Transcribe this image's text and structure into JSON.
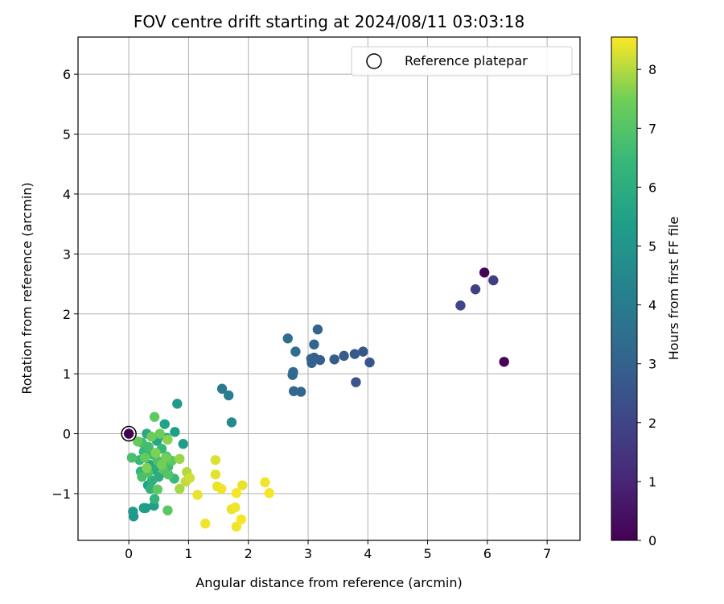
{
  "chart_data": {
    "type": "scatter",
    "title": "FOV centre drift starting at 2024/08/11 03:03:18",
    "xlabel": "Angular distance from reference (arcmin)",
    "ylabel": "Rotation from reference (arcmin)",
    "xlim": [
      -0.85,
      7.55
    ],
    "ylim": [
      -1.78,
      6.62
    ],
    "xticks": [
      0,
      1,
      2,
      3,
      4,
      5,
      6,
      7
    ],
    "yticks": [
      -1,
      0,
      1,
      2,
      3,
      4,
      5,
      6
    ],
    "grid": true,
    "colormap": "viridis",
    "colorbar": {
      "label": "Hours from first FF file",
      "range": [
        0,
        8.55
      ],
      "ticks": [
        0,
        1,
        2,
        3,
        4,
        5,
        6,
        7,
        8
      ]
    },
    "legend": {
      "position": "top-right",
      "entries": [
        "Reference platepar"
      ]
    },
    "reference_point": {
      "x": 0,
      "y": 0
    },
    "points": [
      {
        "x": 5.95,
        "y": 2.69,
        "c": 0.05
      },
      {
        "x": 6.28,
        "y": 1.2,
        "c": 0.1
      },
      {
        "x": 0.0,
        "y": 0.0,
        "c": 0.0
      },
      {
        "x": 6.1,
        "y": 2.56,
        "c": 1.8
      },
      {
        "x": 5.8,
        "y": 2.41,
        "c": 1.85
      },
      {
        "x": 5.55,
        "y": 2.14,
        "c": 2.0
      },
      {
        "x": 3.8,
        "y": 0.86,
        "c": 2.55
      },
      {
        "x": 4.03,
        "y": 1.19,
        "c": 2.6
      },
      {
        "x": 3.92,
        "y": 1.37,
        "c": 2.65
      },
      {
        "x": 3.78,
        "y": 1.33,
        "c": 2.7
      },
      {
        "x": 3.6,
        "y": 1.3,
        "c": 2.75
      },
      {
        "x": 3.44,
        "y": 1.24,
        "c": 2.8
      },
      {
        "x": 3.2,
        "y": 1.23,
        "c": 2.85
      },
      {
        "x": 3.1,
        "y": 1.27,
        "c": 2.9
      },
      {
        "x": 3.05,
        "y": 1.25,
        "c": 2.95
      },
      {
        "x": 3.06,
        "y": 1.18,
        "c": 3.0
      },
      {
        "x": 3.16,
        "y": 1.74,
        "c": 3.05
      },
      {
        "x": 3.1,
        "y": 1.49,
        "c": 3.1
      },
      {
        "x": 2.88,
        "y": 0.7,
        "c": 3.15
      },
      {
        "x": 2.76,
        "y": 0.71,
        "c": 3.2
      },
      {
        "x": 2.74,
        "y": 0.98,
        "c": 3.25
      },
      {
        "x": 2.75,
        "y": 1.03,
        "c": 3.3
      },
      {
        "x": 2.79,
        "y": 1.37,
        "c": 3.4
      },
      {
        "x": 2.66,
        "y": 1.59,
        "c": 3.5
      },
      {
        "x": 1.56,
        "y": 0.75,
        "c": 3.95
      },
      {
        "x": 1.67,
        "y": 0.64,
        "c": 4.1
      },
      {
        "x": 1.72,
        "y": 0.19,
        "c": 4.6
      },
      {
        "x": 0.08,
        "y": -1.38,
        "c": 5.1
      },
      {
        "x": 0.07,
        "y": -1.3,
        "c": 5.2
      },
      {
        "x": 0.28,
        "y": -1.24,
        "c": 5.3
      },
      {
        "x": 0.25,
        "y": -1.24,
        "c": 5.35
      },
      {
        "x": 0.42,
        "y": -1.2,
        "c": 5.4
      },
      {
        "x": 0.32,
        "y": -0.86,
        "c": 5.5
      },
      {
        "x": 0.81,
        "y": 0.5,
        "c": 5.2
      },
      {
        "x": 0.91,
        "y": -0.17,
        "c": 5.3
      },
      {
        "x": 0.77,
        "y": 0.03,
        "c": 5.4
      },
      {
        "x": 0.6,
        "y": 0.16,
        "c": 5.5
      },
      {
        "x": 0.63,
        "y": -0.07,
        "c": 5.6
      },
      {
        "x": 0.47,
        "y": -0.12,
        "c": 5.7
      },
      {
        "x": 0.3,
        "y": 0.0,
        "c": 5.8
      },
      {
        "x": 0.35,
        "y": -0.52,
        "c": 5.6
      },
      {
        "x": 0.42,
        "y": -0.6,
        "c": 5.9
      },
      {
        "x": 0.5,
        "y": -0.72,
        "c": 6.0
      },
      {
        "x": 0.39,
        "y": -0.78,
        "c": 6.1
      },
      {
        "x": 0.36,
        "y": -0.92,
        "c": 6.2
      },
      {
        "x": 0.43,
        "y": -1.09,
        "c": 6.3
      },
      {
        "x": 0.2,
        "y": -0.63,
        "c": 6.3
      },
      {
        "x": 0.18,
        "y": -0.44,
        "c": 6.4
      },
      {
        "x": 0.25,
        "y": -0.3,
        "c": 6.4
      },
      {
        "x": 0.55,
        "y": -0.25,
        "c": 6.4
      },
      {
        "x": 0.63,
        "y": -0.38,
        "c": 6.5
      },
      {
        "x": 0.76,
        "y": -0.75,
        "c": 6.5
      },
      {
        "x": 0.66,
        "y": -0.55,
        "c": 6.6
      },
      {
        "x": 0.4,
        "y": -0.35,
        "c": 6.6
      },
      {
        "x": 0.33,
        "y": -0.22,
        "c": 6.7
      },
      {
        "x": 0.22,
        "y": -0.15,
        "c": 6.7
      },
      {
        "x": 0.05,
        "y": -0.4,
        "c": 6.8
      },
      {
        "x": 0.22,
        "y": -0.72,
        "c": 6.8
      },
      {
        "x": 0.32,
        "y": -0.65,
        "c": 6.9
      },
      {
        "x": 0.48,
        "y": -0.45,
        "c": 6.9
      },
      {
        "x": 0.58,
        "y": -0.6,
        "c": 7.0
      },
      {
        "x": 0.66,
        "y": -0.68,
        "c": 7.0
      },
      {
        "x": 0.72,
        "y": -0.45,
        "c": 7.1
      },
      {
        "x": 0.65,
        "y": -1.28,
        "c": 7.1
      },
      {
        "x": 0.48,
        "y": -0.93,
        "c": 7.2
      },
      {
        "x": 0.43,
        "y": 0.28,
        "c": 7.2
      },
      {
        "x": 0.15,
        "y": -0.13,
        "c": 7.3
      },
      {
        "x": 0.27,
        "y": -0.4,
        "c": 7.3
      },
      {
        "x": 0.38,
        "y": -0.05,
        "c": 7.4
      },
      {
        "x": 0.52,
        "y": 0.0,
        "c": 7.4
      },
      {
        "x": 0.62,
        "y": -0.4,
        "c": 7.5
      },
      {
        "x": 0.55,
        "y": -0.52,
        "c": 7.5
      },
      {
        "x": 0.45,
        "y": -0.32,
        "c": 7.6
      },
      {
        "x": 0.3,
        "y": -0.57,
        "c": 7.6
      },
      {
        "x": 0.65,
        "y": -0.1,
        "c": 7.7
      },
      {
        "x": 0.85,
        "y": -0.42,
        "c": 7.8
      },
      {
        "x": 0.85,
        "y": -0.92,
        "c": 7.9
      },
      {
        "x": 0.97,
        "y": -0.64,
        "c": 8.0
      },
      {
        "x": 0.95,
        "y": -0.8,
        "c": 8.1
      },
      {
        "x": 1.02,
        "y": -0.74,
        "c": 8.2
      },
      {
        "x": 1.15,
        "y": -1.02,
        "c": 8.4
      },
      {
        "x": 1.28,
        "y": -1.5,
        "c": 8.45
      },
      {
        "x": 1.45,
        "y": -0.44,
        "c": 8.3
      },
      {
        "x": 1.45,
        "y": -0.68,
        "c": 8.35
      },
      {
        "x": 1.48,
        "y": -0.88,
        "c": 8.4
      },
      {
        "x": 1.55,
        "y": -0.92,
        "c": 8.45
      },
      {
        "x": 1.72,
        "y": -1.26,
        "c": 8.4
      },
      {
        "x": 1.78,
        "y": -1.23,
        "c": 8.45
      },
      {
        "x": 1.8,
        "y": -0.99,
        "c": 8.5
      },
      {
        "x": 1.8,
        "y": -1.55,
        "c": 8.45
      },
      {
        "x": 1.88,
        "y": -1.43,
        "c": 8.5
      },
      {
        "x": 1.9,
        "y": -0.86,
        "c": 8.4
      },
      {
        "x": 2.28,
        "y": -0.81,
        "c": 8.45
      },
      {
        "x": 2.35,
        "y": -0.99,
        "c": 8.5
      }
    ]
  }
}
